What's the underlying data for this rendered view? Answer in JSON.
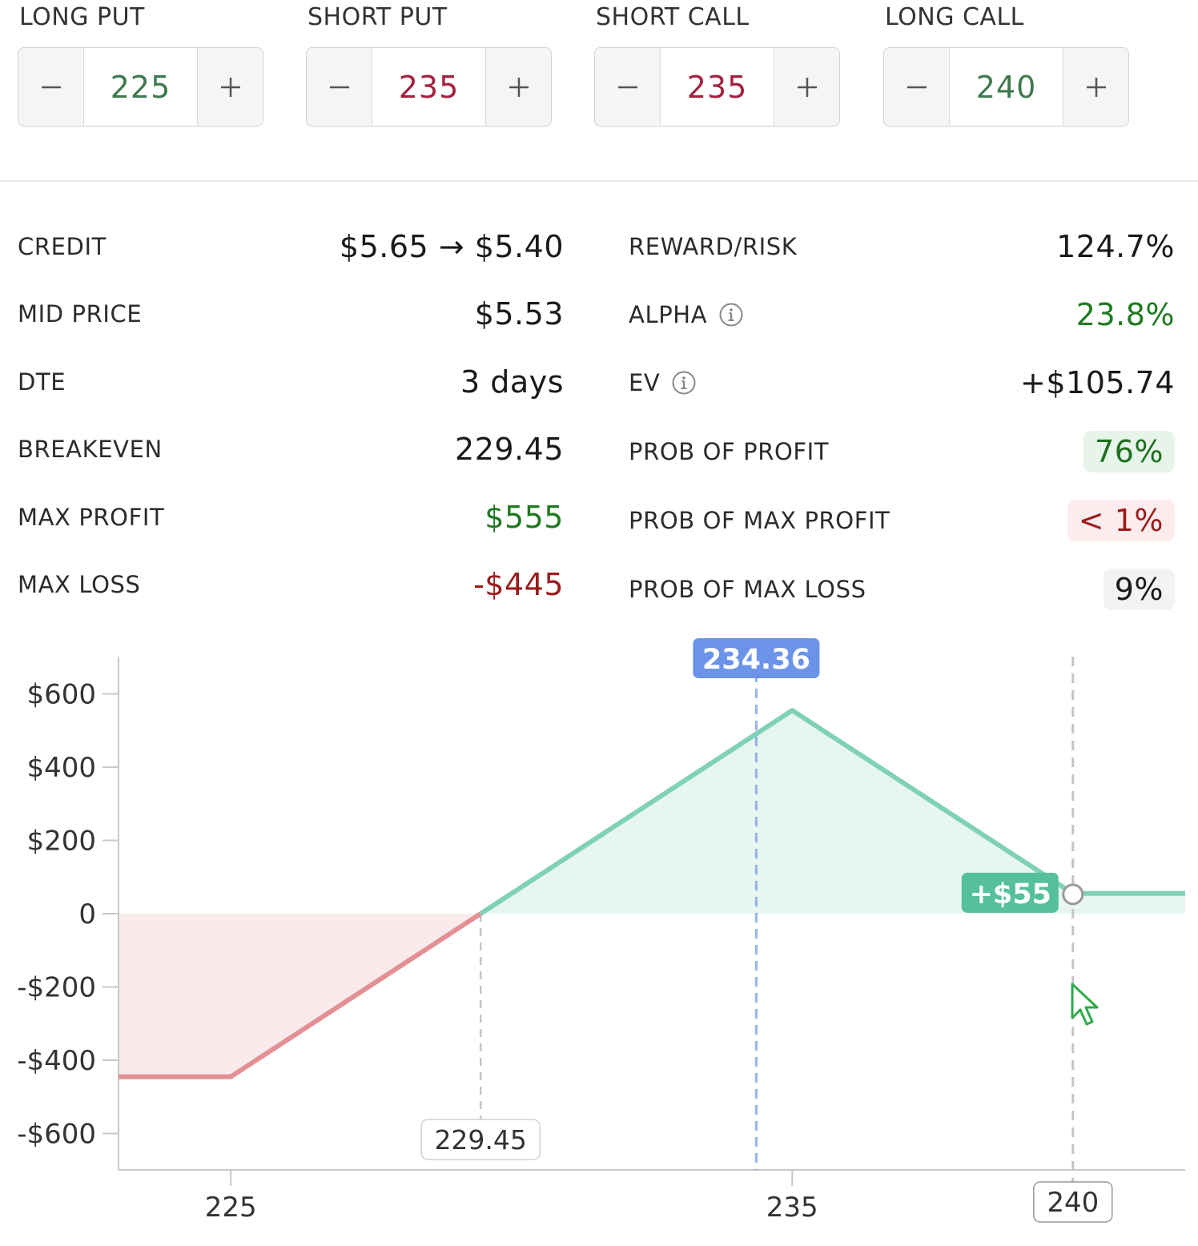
{
  "strikes": [
    {
      "label": "LONG PUT",
      "value": "225",
      "color": "#3d7a4f"
    },
    {
      "label": "SHORT PUT",
      "value": "235",
      "color": "#a3213f"
    },
    {
      "label": "SHORT CALL",
      "value": "235",
      "color": "#a3213f"
    },
    {
      "label": "LONG CALL",
      "value": "240",
      "color": "#3d7a4f"
    }
  ],
  "stats_left": [
    {
      "label": "CREDIT",
      "value": "$5.65 → $5.40"
    },
    {
      "label": "MID PRICE",
      "value": "$5.53"
    },
    {
      "label": "DTE",
      "value": "3 days"
    },
    {
      "label": "BREAKEVEN",
      "value": "229.45"
    },
    {
      "label": "MAX PROFIT",
      "value": "$555",
      "color": "#1f7a1f"
    },
    {
      "label": "MAX LOSS",
      "value": "-$445",
      "color": "#9b1c1c"
    }
  ],
  "stats_right": [
    {
      "label": "REWARD/RISK",
      "value": "124.7%"
    },
    {
      "label": "ALPHA",
      "value": "23.8%",
      "color": "#1f7a1f",
      "info_icon": "info-icon"
    },
    {
      "label": "EV",
      "value": "+$105.74",
      "info_icon": "info-icon"
    },
    {
      "label": "PROB OF PROFIT",
      "value": "76%",
      "color": "#1f6f1f",
      "pill_bg": "#e7f4ea"
    },
    {
      "label": "PROB OF MAX PROFIT",
      "value": "< 1%",
      "color": "#9b1c1c",
      "pill_bg": "#fdecee"
    },
    {
      "label": "PROB OF MAX LOSS",
      "value": "9%",
      "color": "#1a1a1a",
      "pill_bg": "#f2f3f4"
    }
  ],
  "colors": {
    "profit": "#7fd1b9",
    "profit_fill": "#e8f6f0",
    "loss": "#e39094",
    "loss_fill": "#fbeaec",
    "current_price": "#6b93e8",
    "hover_badge": "#55c09a",
    "axis": "#c8c8c8"
  },
  "chart_data": {
    "type": "line",
    "title": "",
    "xlabel": "",
    "ylabel": "",
    "x_range": [
      223,
      242
    ],
    "ylim": [
      -700,
      700
    ],
    "y_ticks": [
      600,
      400,
      200,
      0,
      -200,
      -400,
      -600
    ],
    "y_tick_labels": [
      "$600",
      "$400",
      "$200",
      "0",
      "-$200",
      "-$400",
      "-$600"
    ],
    "x_ticks": [
      225,
      235
    ],
    "x_tick_labels": [
      "225",
      "235"
    ],
    "series": [
      {
        "x": [
          223,
          225,
          229.45,
          235,
          240,
          240.1,
          242
        ],
        "y": [
          -445,
          -445,
          0,
          555,
          55,
          55,
          55
        ]
      }
    ],
    "current_price": {
      "x": 234.36,
      "label": "234.36"
    },
    "breakeven": {
      "x": 229.45,
      "label": "229.45"
    },
    "hover": {
      "x": 240,
      "y": 55,
      "x_label": "240",
      "value_label": "+$55"
    }
  }
}
